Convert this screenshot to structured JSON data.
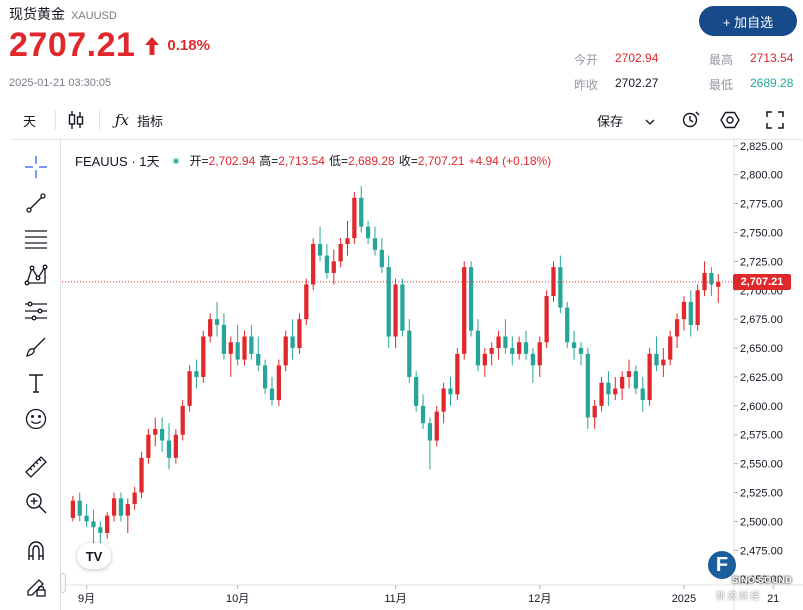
{
  "header": {
    "title": "现货黄金",
    "symbol": "XAUUSD",
    "price": "2707.21",
    "change_pct": "0.18%",
    "timestamp": "2025-01-21 03:30:05",
    "add_button": "+ 加自选",
    "stats": {
      "open_label": "今开",
      "open": "2702.94",
      "prev_label": "昨收",
      "prev": "2702.27",
      "high_label": "最高",
      "high": "2713.54",
      "low_label": "最低",
      "low": "2689.28"
    },
    "colors": {
      "up": "#e0272b",
      "down": "#26a69a",
      "button": "#174a8a"
    }
  },
  "toolbar": {
    "interval": "天",
    "indicators": "指标",
    "save": "保存",
    "icons": [
      "candles-icon",
      "function-icon",
      "chevron-down-icon",
      "alert-icon",
      "settings-hex-icon",
      "fullscreen-icon"
    ]
  },
  "left_tools": [
    "crosshair-icon",
    "trend-line-icon",
    "fib-lines-icon",
    "pattern-icon",
    "measure-lines-icon",
    "brush-icon",
    "text-icon",
    "emoji-icon",
    "ruler-icon",
    "zoom-in-icon",
    "magnet-icon",
    "lock-pencil-icon"
  ],
  "legend": {
    "symbol": "FEAUUS · 1天",
    "open_label": "开=",
    "open": "2,702.94",
    "high_label": "高=",
    "high": "2,713.54",
    "low_label": "低=",
    "low": "2,689.28",
    "close_label": "收=",
    "close": "2,707.21",
    "change": "+4.94 (+0.18%)"
  },
  "last_price_label": "2,707.21",
  "watermark": {
    "logo_letter": "F",
    "text": "SINO SOUND",
    "sub": "新 浪 财 经"
  },
  "tv_logo": "TV",
  "chart_data": {
    "type": "candlestick",
    "y_ticks": [
      "2,825.00",
      "2,800.00",
      "2,775.00",
      "2,750.00",
      "2,725.00",
      "2,700.00",
      "2,675.00",
      "2,650.00",
      "2,625.00",
      "2,600.00",
      "2,575.00",
      "2,550.00",
      "2,525.00",
      "2,500.00",
      "2,475.00",
      "2,450.00"
    ],
    "ylim": [
      2445,
      2830
    ],
    "x_ticks": [
      {
        "label": "9月",
        "index": 2
      },
      {
        "label": "10月",
        "index": 24
      },
      {
        "label": "11月",
        "index": 47
      },
      {
        "label": "12月",
        "index": 68
      },
      {
        "label": "2025",
        "index": 89
      },
      {
        "label": "21",
        "index": 102
      }
    ],
    "last_price": 2707.21,
    "candles": [
      [
        2503,
        2522,
        2500,
        2518
      ],
      [
        2518,
        2525,
        2500,
        2505
      ],
      [
        2505,
        2515,
        2495,
        2500
      ],
      [
        2500,
        2510,
        2480,
        2495
      ],
      [
        2495,
        2500,
        2480,
        2490
      ],
      [
        2490,
        2508,
        2485,
        2505
      ],
      [
        2505,
        2525,
        2500,
        2520
      ],
      [
        2520,
        2525,
        2500,
        2505
      ],
      [
        2505,
        2520,
        2490,
        2515
      ],
      [
        2515,
        2530,
        2510,
        2525
      ],
      [
        2525,
        2560,
        2520,
        2555
      ],
      [
        2555,
        2580,
        2550,
        2575
      ],
      [
        2575,
        2590,
        2565,
        2580
      ],
      [
        2580,
        2590,
        2560,
        2570
      ],
      [
        2570,
        2585,
        2545,
        2555
      ],
      [
        2555,
        2580,
        2550,
        2575
      ],
      [
        2575,
        2605,
        2570,
        2600
      ],
      [
        2600,
        2635,
        2595,
        2630
      ],
      [
        2630,
        2640,
        2615,
        2625
      ],
      [
        2625,
        2665,
        2620,
        2660
      ],
      [
        2660,
        2680,
        2655,
        2675
      ],
      [
        2675,
        2690,
        2660,
        2670
      ],
      [
        2670,
        2680,
        2640,
        2645
      ],
      [
        2645,
        2660,
        2625,
        2655
      ],
      [
        2655,
        2670,
        2635,
        2640
      ],
      [
        2640,
        2665,
        2635,
        2660
      ],
      [
        2660,
        2670,
        2640,
        2645
      ],
      [
        2645,
        2660,
        2630,
        2635
      ],
      [
        2635,
        2640,
        2610,
        2615
      ],
      [
        2615,
        2625,
        2600,
        2605
      ],
      [
        2605,
        2640,
        2600,
        2635
      ],
      [
        2635,
        2665,
        2630,
        2660
      ],
      [
        2660,
        2675,
        2640,
        2650
      ],
      [
        2650,
        2680,
        2645,
        2675
      ],
      [
        2675,
        2710,
        2670,
        2705
      ],
      [
        2705,
        2745,
        2700,
        2740
      ],
      [
        2740,
        2755,
        2725,
        2730
      ],
      [
        2730,
        2740,
        2710,
        2715
      ],
      [
        2715,
        2735,
        2705,
        2725
      ],
      [
        2725,
        2745,
        2720,
        2740
      ],
      [
        2740,
        2760,
        2730,
        2745
      ],
      [
        2745,
        2785,
        2740,
        2780
      ],
      [
        2780,
        2790,
        2750,
        2755
      ],
      [
        2755,
        2760,
        2740,
        2745
      ],
      [
        2745,
        2755,
        2730,
        2735
      ],
      [
        2735,
        2745,
        2715,
        2720
      ],
      [
        2720,
        2730,
        2650,
        2660
      ],
      [
        2660,
        2710,
        2650,
        2705
      ],
      [
        2705,
        2710,
        2660,
        2665
      ],
      [
        2665,
        2675,
        2620,
        2625
      ],
      [
        2625,
        2630,
        2595,
        2600
      ],
      [
        2600,
        2610,
        2580,
        2585
      ],
      [
        2585,
        2590,
        2545,
        2570
      ],
      [
        2570,
        2600,
        2565,
        2595
      ],
      [
        2595,
        2620,
        2585,
        2615
      ],
      [
        2615,
        2625,
        2600,
        2610
      ],
      [
        2610,
        2650,
        2605,
        2645
      ],
      [
        2645,
        2725,
        2640,
        2720
      ],
      [
        2720,
        2725,
        2660,
        2665
      ],
      [
        2665,
        2675,
        2630,
        2635
      ],
      [
        2635,
        2650,
        2625,
        2645
      ],
      [
        2645,
        2655,
        2635,
        2650
      ],
      [
        2650,
        2665,
        2640,
        2660
      ],
      [
        2660,
        2675,
        2645,
        2650
      ],
      [
        2650,
        2660,
        2635,
        2645
      ],
      [
        2645,
        2660,
        2640,
        2655
      ],
      [
        2655,
        2665,
        2640,
        2645
      ],
      [
        2645,
        2650,
        2620,
        2635
      ],
      [
        2635,
        2660,
        2625,
        2655
      ],
      [
        2655,
        2700,
        2650,
        2695
      ],
      [
        2695,
        2725,
        2690,
        2720
      ],
      [
        2720,
        2730,
        2680,
        2685
      ],
      [
        2685,
        2690,
        2650,
        2655
      ],
      [
        2655,
        2665,
        2640,
        2650
      ],
      [
        2650,
        2655,
        2635,
        2645
      ],
      [
        2645,
        2650,
        2580,
        2590
      ],
      [
        2590,
        2605,
        2580,
        2600
      ],
      [
        2600,
        2625,
        2595,
        2620
      ],
      [
        2620,
        2630,
        2600,
        2610
      ],
      [
        2610,
        2625,
        2605,
        2615
      ],
      [
        2615,
        2630,
        2605,
        2625
      ],
      [
        2625,
        2640,
        2615,
        2630
      ],
      [
        2630,
        2635,
        2610,
        2615
      ],
      [
        2615,
        2625,
        2595,
        2605
      ],
      [
        2605,
        2650,
        2600,
        2645
      ],
      [
        2645,
        2660,
        2630,
        2635
      ],
      [
        2635,
        2650,
        2625,
        2640
      ],
      [
        2640,
        2665,
        2635,
        2660
      ],
      [
        2660,
        2680,
        2650,
        2675
      ],
      [
        2675,
        2695,
        2665,
        2690
      ],
      [
        2690,
        2700,
        2660,
        2670
      ],
      [
        2670,
        2705,
        2665,
        2700
      ],
      [
        2700,
        2725,
        2695,
        2715
      ],
      [
        2715,
        2720,
        2695,
        2705
      ],
      [
        2703,
        2714,
        2689,
        2707
      ]
    ]
  }
}
